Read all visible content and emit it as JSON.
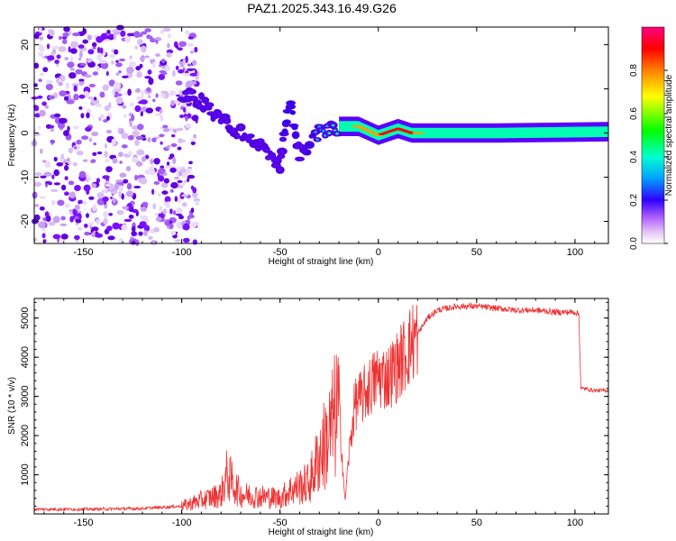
{
  "title": "PAZ1.2025.343.16.49.G26",
  "colors": {
    "snr_line": "#ee3333",
    "axis": "#000000",
    "colormap": [
      "#ffffff",
      "#e6c8f5",
      "#b060ff",
      "#6a00ff",
      "#0000ff",
      "#00b4ff",
      "#00ffb0",
      "#00ff00",
      "#ffff00",
      "#ffa000",
      "#ff0000",
      "#ff0080"
    ]
  },
  "spectrogram": {
    "type": "heatmap",
    "xlabel": "Height of straight line (km)",
    "ylabel": "Frequency (Hz)",
    "xlim": [
      -175,
      117
    ],
    "ylim": [
      -25,
      24
    ],
    "xticks": [
      -150,
      -100,
      -50,
      0,
      50,
      100
    ],
    "yticks": [
      -20,
      -10,
      0,
      10,
      20
    ],
    "noise_region": [
      -175,
      -100
    ],
    "signal_track": [
      {
        "x": -100,
        "f": 9,
        "amp": 0.25
      },
      {
        "x": -90,
        "f": 7,
        "amp": 0.3
      },
      {
        "x": -80,
        "f": 3,
        "amp": 0.3
      },
      {
        "x": -70,
        "f": 0,
        "amp": 0.3
      },
      {
        "x": -60,
        "f": -3,
        "amp": 0.3
      },
      {
        "x": -50,
        "f": -7,
        "amp": 0.3
      },
      {
        "x": -45,
        "f": 7,
        "amp": 0.35
      },
      {
        "x": -40,
        "f": -5,
        "amp": 0.3
      },
      {
        "x": -30,
        "f": 0,
        "amp": 0.45
      },
      {
        "x": -20,
        "f": 1.5,
        "amp": 0.55
      },
      {
        "x": -10,
        "f": 1.5,
        "amp": 0.85
      },
      {
        "x": 0,
        "f": -0.5,
        "amp": 0.85
      },
      {
        "x": 10,
        "f": 1,
        "amp": 0.95
      },
      {
        "x": 17,
        "f": 0,
        "amp": 0.9
      },
      {
        "x": 30,
        "f": 0,
        "amp": 0.6
      },
      {
        "x": 60,
        "f": 0,
        "amp": 0.5
      },
      {
        "x": 117,
        "f": 0.3,
        "amp": 0.5
      }
    ]
  },
  "colorbar": {
    "label": "Normalized spectral amplitude",
    "ticks": [
      "0.0",
      "0.2",
      "0.4",
      "0.6",
      "0.8"
    ],
    "range": [
      0.0,
      1.0
    ]
  },
  "chart_data": {
    "type": "line",
    "title": "PAZ1.2025.343.16.49.G26",
    "xlabel": "Height of straight line (km)",
    "ylabel": "SNR (10 * v/v)",
    "xlim": [
      -175,
      117
    ],
    "ylim": [
      0,
      5500
    ],
    "xticks": [
      -150,
      -100,
      -50,
      0,
      50,
      100
    ],
    "yticks": [
      1000,
      2000,
      3000,
      4000,
      5000
    ],
    "series": [
      {
        "name": "SNR",
        "x": [
          -175,
          -150,
          -120,
          -100,
          -90,
          -80,
          -77,
          -70,
          -60,
          -50,
          -45,
          -35,
          -30,
          -25,
          -20,
          -17,
          -15,
          -12,
          -8,
          -5,
          -2,
          0,
          5,
          10,
          15,
          20,
          25,
          30,
          35,
          40,
          50,
          60,
          70,
          80,
          90,
          100,
          102,
          103,
          105,
          110,
          117
        ],
        "y": [
          120,
          120,
          140,
          200,
          350,
          500,
          1000,
          500,
          450,
          400,
          600,
          800,
          1500,
          2000,
          2800,
          300,
          1500,
          2800,
          3000,
          3200,
          3400,
          3500,
          3500,
          3800,
          4200,
          4600,
          5000,
          5200,
          5250,
          5300,
          5300,
          5250,
          5200,
          5200,
          5150,
          5150,
          5100,
          3200,
          3200,
          3150,
          3150
        ]
      }
    ],
    "annotations": [
      "sharp drop at x = 103 km"
    ]
  }
}
